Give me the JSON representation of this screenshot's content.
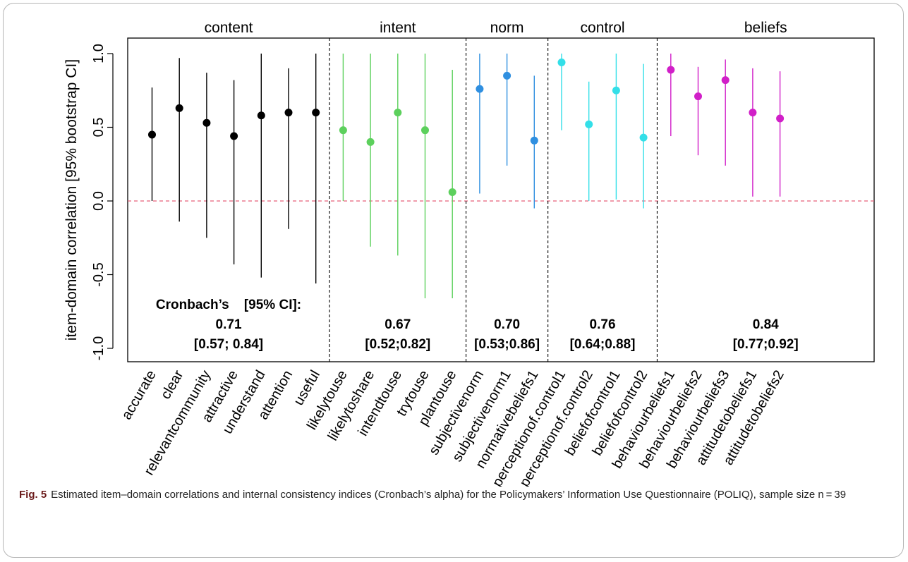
{
  "chart_data": {
    "type": "scatter",
    "ylabel": "item-domain correlation [95% bootstrap CI]",
    "ylim": [
      -1.1,
      1.1
    ],
    "y_ticks": [
      -1.0,
      -0.5,
      0.0,
      0.5,
      1.0
    ],
    "y_tick_labels": [
      "-1.0",
      "-0.5",
      "0.0",
      "0.5",
      "1.0"
    ],
    "reference_line": 0.0,
    "reference_line_color": "#e8617a",
    "groups": [
      {
        "name": "content",
        "color": "#000000",
        "alpha_lines": [
          "Cronbach’s    [95% CI]:",
          "0.71",
          "[0.57; 0.84]"
        ],
        "items": [
          {
            "label": "accurate",
            "y": 0.45,
            "lo": 0.0,
            "hi": 0.77
          },
          {
            "label": "clear",
            "y": 0.63,
            "lo": -0.14,
            "hi": 0.97
          },
          {
            "label": "relevantcommunity",
            "y": 0.53,
            "lo": -0.25,
            "hi": 0.87
          },
          {
            "label": "attractive",
            "y": 0.44,
            "lo": -0.43,
            "hi": 0.82
          },
          {
            "label": "understand",
            "y": 0.58,
            "lo": -0.52,
            "hi": 1.0
          },
          {
            "label": "attention",
            "y": 0.6,
            "lo": -0.19,
            "hi": 0.9
          },
          {
            "label": "useful",
            "y": 0.6,
            "lo": -0.56,
            "hi": 1.0
          }
        ]
      },
      {
        "name": "intent",
        "color": "#5cd05c",
        "alpha_lines": [
          "0.67",
          "[0.52;0.82]"
        ],
        "items": [
          {
            "label": "likelytouse",
            "y": 0.48,
            "lo": 0.0,
            "hi": 1.0
          },
          {
            "label": "likelytoshare",
            "y": 0.4,
            "lo": -0.31,
            "hi": 1.0
          },
          {
            "label": "intendtouse",
            "y": 0.6,
            "lo": -0.37,
            "hi": 1.0
          },
          {
            "label": "trytouse",
            "y": 0.48,
            "lo": -0.66,
            "hi": 1.0
          },
          {
            "label": "plantouse",
            "y": 0.06,
            "lo": -0.66,
            "hi": 0.89
          }
        ]
      },
      {
        "name": "norm",
        "color": "#2f8fe0",
        "alpha_lines": [
          "0.70",
          "[0.53;0.86]"
        ],
        "items": [
          {
            "label": "subjectivenorm",
            "y": 0.76,
            "lo": 0.05,
            "hi": 1.0
          },
          {
            "label": "subjectivenorm1",
            "y": 0.85,
            "lo": 0.24,
            "hi": 1.0
          },
          {
            "label": "normativebeliefs1",
            "y": 0.41,
            "lo": -0.05,
            "hi": 0.85
          }
        ]
      },
      {
        "name": "control",
        "color": "#33dfe8",
        "alpha_lines": [
          "0.76",
          "[0.64;0.88]"
        ],
        "items": [
          {
            "label": "perceptionof.control1",
            "y": 0.94,
            "lo": 0.48,
            "hi": 1.0
          },
          {
            "label": "perceptionof.control2",
            "y": 0.52,
            "lo": 0.0,
            "hi": 0.81
          },
          {
            "label": "beliefofcontrol1",
            "y": 0.75,
            "lo": 0.01,
            "hi": 1.0
          },
          {
            "label": "beliefofcontrol2",
            "y": 0.43,
            "lo": -0.05,
            "hi": 0.93
          }
        ]
      },
      {
        "name": "beliefs",
        "color": "#d11fc8",
        "alpha_lines": [
          "0.84",
          "[0.77;0.92]"
        ],
        "items": [
          {
            "label": "behaviourbeliefs1",
            "y": 0.89,
            "lo": 0.44,
            "hi": 1.0
          },
          {
            "label": "behaviourbeliefs2",
            "y": 0.71,
            "lo": 0.31,
            "hi": 0.91
          },
          {
            "label": "behaviourbeliefs3",
            "y": 0.82,
            "lo": 0.24,
            "hi": 0.96
          },
          {
            "label": "attitudetobeliefs1",
            "y": 0.6,
            "lo": 0.03,
            "hi": 0.9
          },
          {
            "label": "attitudetobeliefs2",
            "y": 0.56,
            "lo": 0.03,
            "hi": 0.88
          }
        ]
      }
    ]
  },
  "caption": {
    "label": "Fig. 5",
    "text": "Estimated item–domain correlations and internal consistency indices (Cronbach’s alpha) for the Policymakers’ Information Use Questionnaire (POLIQ), sample size n = 39"
  }
}
